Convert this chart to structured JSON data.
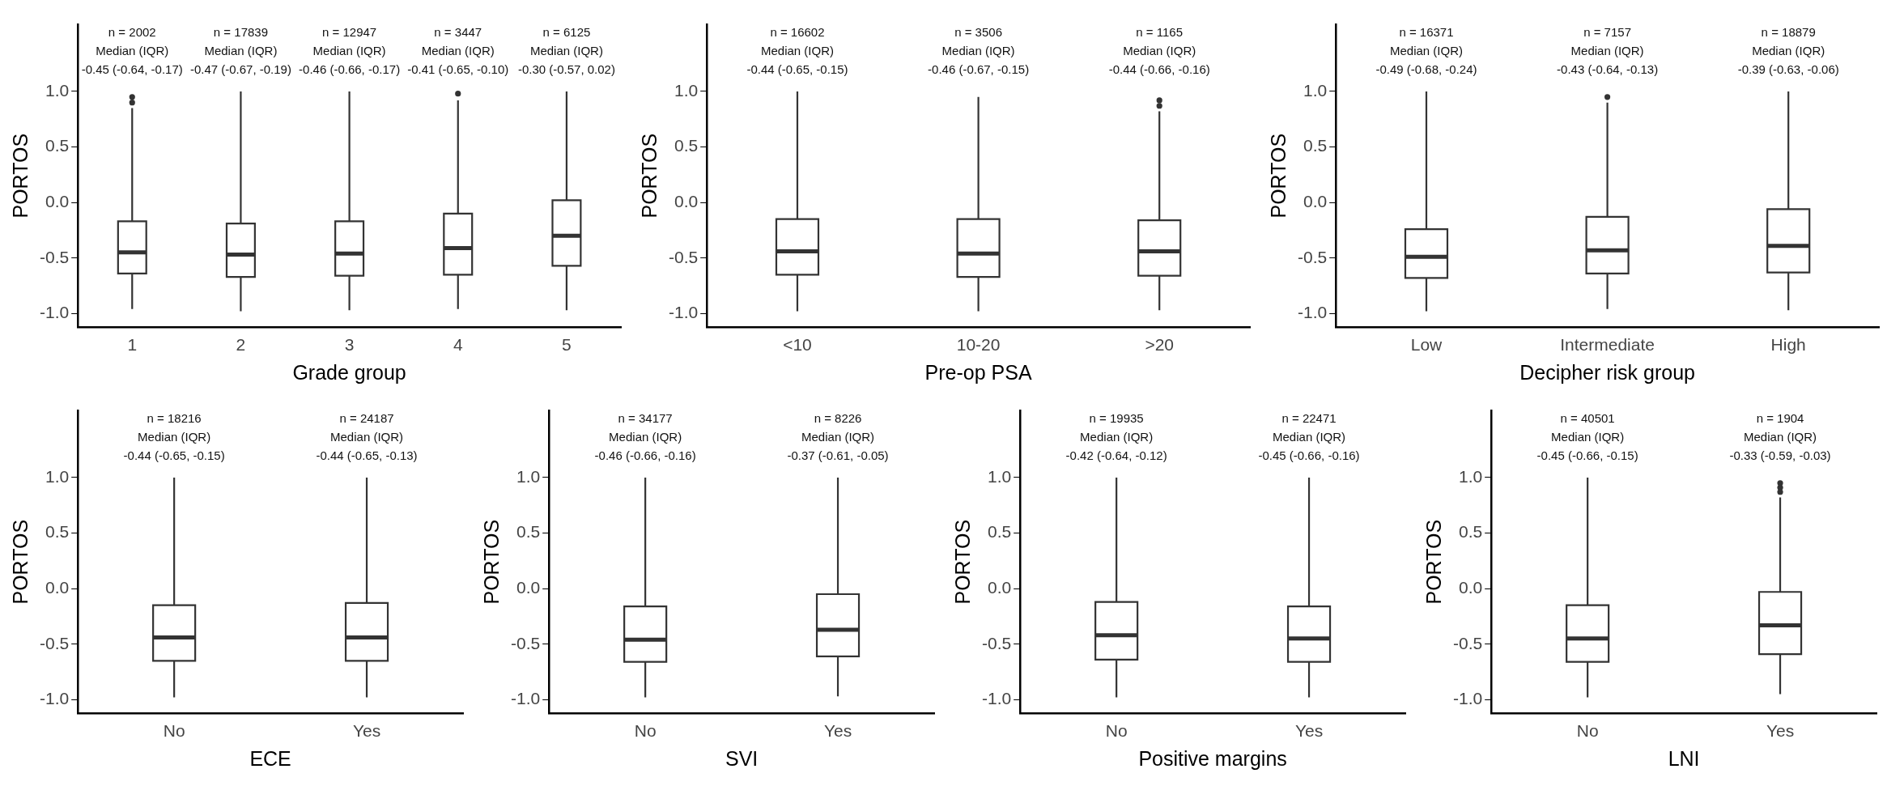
{
  "chart_data": [
    {
      "type": "box",
      "xlabel": "Grade group",
      "ylabel": "PORTOS",
      "categories": [
        "1",
        "2",
        "3",
        "4",
        "5"
      ],
      "ylim": [
        -1.12,
        1.6
      ],
      "yticks": [
        {
          "value": -1,
          "label": "-1.0"
        },
        {
          "value": -0.5,
          "label": "-0.5"
        },
        {
          "value": 0,
          "label": "0.0"
        },
        {
          "value": 0.5,
          "label": "0.5"
        },
        {
          "value": 1,
          "label": "1.0"
        }
      ],
      "grid": false,
      "boxes": [
        {
          "low": -0.96,
          "q1": -0.64,
          "median": -0.45,
          "q3": -0.17,
          "high": 0.85,
          "outliers": [
            0.9,
            0.95
          ]
        },
        {
          "low": -0.98,
          "q1": -0.67,
          "median": -0.47,
          "q3": -0.19,
          "high": 1.0
        },
        {
          "low": -0.97,
          "q1": -0.66,
          "median": -0.46,
          "q3": -0.17,
          "high": 1.0
        },
        {
          "low": -0.96,
          "q1": -0.65,
          "median": -0.41,
          "q3": -0.1,
          "high": 0.92,
          "outliers": [
            0.98
          ]
        },
        {
          "low": -0.97,
          "q1": -0.57,
          "median": -0.3,
          "q3": 0.02,
          "high": 1.0
        }
      ],
      "annotations": [
        "n = 2002\nMedian (IQR)\n-0.45 (-0.64, -0.17)",
        "n = 17839\nMedian (IQR)\n-0.47 (-0.67, -0.19)",
        "n = 12947\nMedian (IQR)\n-0.46 (-0.66, -0.17)",
        "n = 3447\nMedian (IQR)\n-0.41 (-0.65, -0.10)",
        "n = 6125\nMedian (IQR)\n-0.30 (-0.57, 0.02)"
      ]
    },
    {
      "type": "box",
      "xlabel": "Pre-op PSA",
      "ylabel": "PORTOS",
      "categories": [
        "<10",
        "10-20",
        ">20"
      ],
      "ylim": [
        -1.12,
        1.6
      ],
      "yticks": [
        {
          "value": -1,
          "label": "-1.0"
        },
        {
          "value": -0.5,
          "label": "-0.5"
        },
        {
          "value": 0,
          "label": "0.0"
        },
        {
          "value": 0.5,
          "label": "0.5"
        },
        {
          "value": 1,
          "label": "1.0"
        }
      ],
      "grid": false,
      "boxes": [
        {
          "low": -0.98,
          "q1": -0.65,
          "median": -0.44,
          "q3": -0.15,
          "high": 1.0
        },
        {
          "low": -0.98,
          "q1": -0.67,
          "median": -0.46,
          "q3": -0.15,
          "high": 0.95
        },
        {
          "low": -0.97,
          "q1": -0.66,
          "median": -0.44,
          "q3": -0.16,
          "high": 0.82,
          "outliers": [
            0.87,
            0.92
          ]
        }
      ],
      "annotations": [
        "n = 16602\nMedian (IQR)\n-0.44 (-0.65, -0.15)",
        "n = 3506\nMedian (IQR)\n-0.46 (-0.67, -0.15)",
        "n = 1165\nMedian (IQR)\n-0.44 (-0.66, -0.16)"
      ]
    },
    {
      "type": "box",
      "xlabel": "Decipher risk group",
      "ylabel": "PORTOS",
      "categories": [
        "Low",
        "Intermediate",
        "High"
      ],
      "ylim": [
        -1.12,
        1.6
      ],
      "yticks": [
        {
          "value": -1,
          "label": "-1.0"
        },
        {
          "value": -0.5,
          "label": "-0.5"
        },
        {
          "value": 0,
          "label": "0.0"
        },
        {
          "value": 0.5,
          "label": "0.5"
        },
        {
          "value": 1,
          "label": "1.0"
        }
      ],
      "grid": false,
      "boxes": [
        {
          "low": -0.98,
          "q1": -0.68,
          "median": -0.49,
          "q3": -0.24,
          "high": 1.0
        },
        {
          "low": -0.96,
          "q1": -0.64,
          "median": -0.43,
          "q3": -0.13,
          "high": 0.9,
          "outliers": [
            0.95
          ]
        },
        {
          "low": -0.97,
          "q1": -0.63,
          "median": -0.39,
          "q3": -0.06,
          "high": 1.0
        }
      ],
      "annotations": [
        "n = 16371\nMedian (IQR)\n-0.49 (-0.68, -0.24)",
        "n = 7157\nMedian (IQR)\n-0.43 (-0.64, -0.13)",
        "n = 18879\nMedian (IQR)\n-0.39 (-0.63, -0.06)"
      ]
    },
    {
      "type": "box",
      "xlabel": "ECE",
      "ylabel": "PORTOS",
      "categories": [
        "No",
        "Yes"
      ],
      "ylim": [
        -1.12,
        1.6
      ],
      "yticks": [
        {
          "value": -1,
          "label": "-1.0"
        },
        {
          "value": -0.5,
          "label": "-0.5"
        },
        {
          "value": 0,
          "label": "0.0"
        },
        {
          "value": 0.5,
          "label": "0.5"
        },
        {
          "value": 1,
          "label": "1.0"
        }
      ],
      "grid": false,
      "boxes": [
        {
          "low": -0.98,
          "q1": -0.65,
          "median": -0.44,
          "q3": -0.15,
          "high": 1.0
        },
        {
          "low": -0.98,
          "q1": -0.65,
          "median": -0.44,
          "q3": -0.13,
          "high": 1.0
        }
      ],
      "annotations": [
        "n = 18216\nMedian (IQR)\n-0.44 (-0.65, -0.15)",
        "n = 24187\nMedian (IQR)\n-0.44 (-0.65, -0.13)"
      ]
    },
    {
      "type": "box",
      "xlabel": "SVI",
      "ylabel": "PORTOS",
      "categories": [
        "No",
        "Yes"
      ],
      "ylim": [
        -1.12,
        1.6
      ],
      "yticks": [
        {
          "value": -1,
          "label": "-1.0"
        },
        {
          "value": -0.5,
          "label": "-0.5"
        },
        {
          "value": 0,
          "label": "0.0"
        },
        {
          "value": 0.5,
          "label": "0.5"
        },
        {
          "value": 1,
          "label": "1.0"
        }
      ],
      "grid": false,
      "boxes": [
        {
          "low": -0.98,
          "q1": -0.66,
          "median": -0.46,
          "q3": -0.16,
          "high": 1.0
        },
        {
          "low": -0.97,
          "q1": -0.61,
          "median": -0.37,
          "q3": -0.05,
          "high": 1.0
        }
      ],
      "annotations": [
        "n = 34177\nMedian (IQR)\n-0.46 (-0.66, -0.16)",
        "n = 8226\nMedian (IQR)\n-0.37 (-0.61, -0.05)"
      ]
    },
    {
      "type": "box",
      "xlabel": "Positive margins",
      "ylabel": "PORTOS",
      "categories": [
        "No",
        "Yes"
      ],
      "ylim": [
        -1.12,
        1.6
      ],
      "yticks": [
        {
          "value": -1,
          "label": "-1.0"
        },
        {
          "value": -0.5,
          "label": "-0.5"
        },
        {
          "value": 0,
          "label": "0.0"
        },
        {
          "value": 0.5,
          "label": "0.5"
        },
        {
          "value": 1,
          "label": "1.0"
        }
      ],
      "grid": false,
      "boxes": [
        {
          "low": -0.98,
          "q1": -0.64,
          "median": -0.42,
          "q3": -0.12,
          "high": 1.0
        },
        {
          "low": -0.98,
          "q1": -0.66,
          "median": -0.45,
          "q3": -0.16,
          "high": 1.0
        }
      ],
      "annotations": [
        "n = 19935\nMedian (IQR)\n-0.42 (-0.64, -0.12)",
        "n = 22471\nMedian (IQR)\n-0.45 (-0.66, -0.16)"
      ]
    },
    {
      "type": "box",
      "xlabel": "LNI",
      "ylabel": "PORTOS",
      "categories": [
        "No",
        "Yes"
      ],
      "ylim": [
        -1.12,
        1.6
      ],
      "yticks": [
        {
          "value": -1,
          "label": "-1.0"
        },
        {
          "value": -0.5,
          "label": "-0.5"
        },
        {
          "value": 0,
          "label": "0.0"
        },
        {
          "value": 0.5,
          "label": "0.5"
        },
        {
          "value": 1,
          "label": "1.0"
        }
      ],
      "grid": false,
      "boxes": [
        {
          "low": -0.98,
          "q1": -0.66,
          "median": -0.45,
          "q3": -0.15,
          "high": 1.0
        },
        {
          "low": -0.95,
          "q1": -0.59,
          "median": -0.33,
          "q3": -0.03,
          "high": 0.82,
          "outliers": [
            0.87,
            0.91,
            0.95
          ]
        }
      ],
      "annotations": [
        "n = 40501\nMedian (IQR)\n-0.45 (-0.66, -0.15)",
        "n = 1904\nMedian (IQR)\n-0.33 (-0.59, -0.03)"
      ]
    }
  ]
}
